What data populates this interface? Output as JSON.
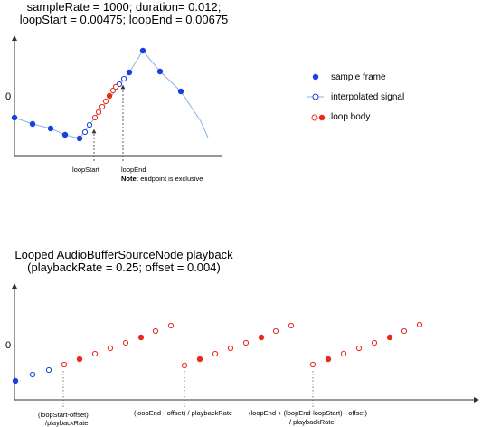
{
  "top": {
    "title_line1": "sampleRate = 1000; duration= 0.012;",
    "title_line2": "loopStart = 0.00475; loopEnd = 0.00675",
    "y_zero_label": "0",
    "annotations": {
      "loop_start": "loopStart",
      "loop_end": "loopEnd",
      "note_bold": "Note:",
      "note_text": " endpoint is exclusive"
    },
    "legend": {
      "sample_frame": "sample frame",
      "interpolated": "interpolated signal",
      "loop_body": "loop body"
    }
  },
  "bottom": {
    "title_line1": "Looped AudioBufferSourceNode playback",
    "title_line2": "(playbackRate = 0.25; offset = 0.004)",
    "y_zero_label": "0",
    "annotations": {
      "a1_line1": "(loopStart-offset)",
      "a1_line2": "/playbackRate",
      "a2": "(loopEnd - offset) / playbackRate",
      "a3_line1": "(loopEnd + (loopEnd-loopStart) - offset)",
      "a3_line2": "/ playbackRate"
    }
  },
  "colors": {
    "sample": "#1a3fe0",
    "loop": "#e8291c",
    "line": "#8ab4e8",
    "axis": "#333333"
  }
}
